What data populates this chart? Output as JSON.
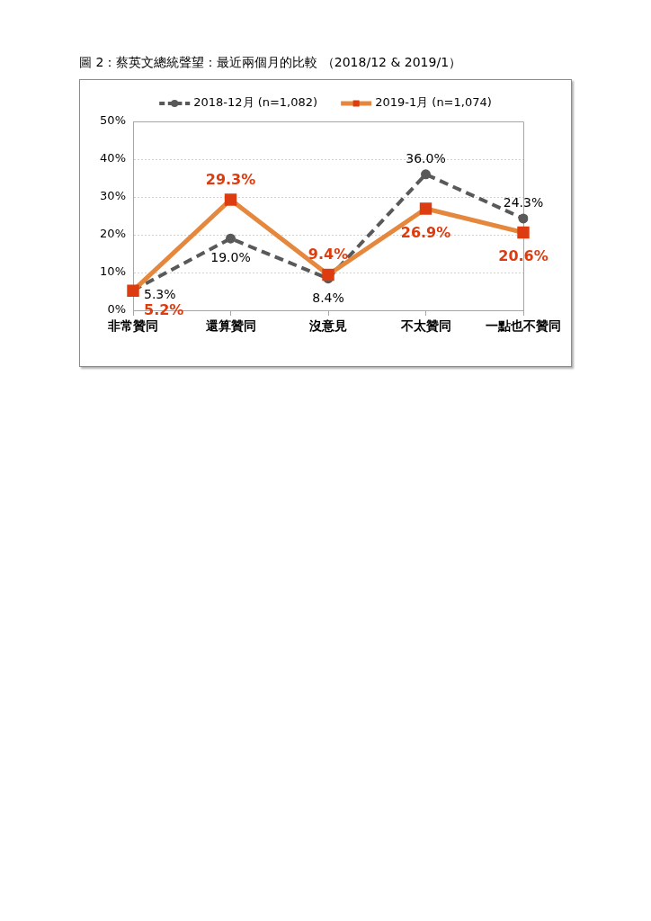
{
  "chart_data": {
    "type": "line",
    "title": "圖 2：蔡英文總統聲望：最近兩個月的比較 （2018/12 & 2019/1）",
    "categories": [
      "非常贊同",
      "還算贊同",
      "沒意見",
      "不太贊同",
      "一點也不贊同"
    ],
    "series": [
      {
        "name": "2018-12月 (n=1,082)",
        "color": "#595959",
        "values": [
          5.3,
          19.0,
          8.4,
          36.0,
          24.3
        ],
        "value_labels": [
          "5.3%",
          "19.0%",
          "8.4%",
          "36.0%",
          "24.3%"
        ],
        "marker": "circle",
        "line_style": "dashed"
      },
      {
        "name": "2019-1月 (n=1,074)",
        "color": "#e5873c",
        "colors": [
          "#dd3c10",
          "#dd3c10",
          "#dd3c10",
          "#dd3c10",
          "#dd3c10"
        ],
        "values": [
          5.2,
          29.3,
          9.4,
          26.9,
          20.6
        ],
        "value_labels": [
          "5.2%",
          "29.3%",
          "9.4%",
          "26.9%",
          "20.6%"
        ],
        "marker": "square",
        "line_style": "solid"
      }
    ],
    "ylim": [
      0,
      50
    ],
    "yticks": [
      {
        "value": 0,
        "label": "0%"
      },
      {
        "value": 10,
        "label": "10%"
      },
      {
        "value": 20,
        "label": "20%"
      },
      {
        "value": 30,
        "label": "30%"
      },
      {
        "value": 40,
        "label": "40%"
      },
      {
        "value": 50,
        "label": "50%"
      }
    ],
    "grid": "y",
    "legend": "top"
  }
}
